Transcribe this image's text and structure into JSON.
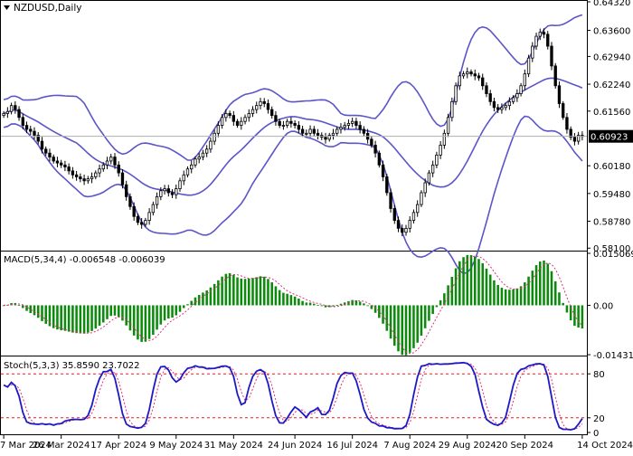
{
  "chart_data": [
    {
      "type": "candlestick",
      "pane": "price",
      "title": "NZDUSD,Daily",
      "ylim": [
        0.5806,
        0.6432
      ],
      "y_ticks": [
        "0.64320",
        "0.63600",
        "0.62940",
        "0.62240",
        "0.61560",
        "0.60180",
        "0.59480",
        "0.58780",
        "0.58100"
      ],
      "current_price": 0.60923,
      "current_price_label": "0.60923",
      "x_labels": [
        "7 Mar 2024",
        "26 Mar 2024",
        "17 Apr 2024",
        "9 May 2024",
        "31 May 2024",
        "24 Jun 2024",
        "16 Jul 2024",
        "7 Aug 2024",
        "29 Aug 2024",
        "20 Sep 2024",
        "14 Oct 2024"
      ],
      "closes": [
        0.615,
        0.6155,
        0.617,
        0.616,
        0.614,
        0.612,
        0.611,
        0.6105,
        0.6095,
        0.608,
        0.606,
        0.605,
        0.604,
        0.603,
        0.6025,
        0.602,
        0.6015,
        0.6005,
        0.5995,
        0.599,
        0.5985,
        0.598,
        0.5985,
        0.599,
        0.6,
        0.601,
        0.602,
        0.603,
        0.604,
        0.602,
        0.6,
        0.597,
        0.594,
        0.5915,
        0.589,
        0.5875,
        0.587,
        0.588,
        0.59,
        0.592,
        0.594,
        0.5955,
        0.596,
        0.595,
        0.5945,
        0.596,
        0.598,
        0.5995,
        0.601,
        0.602,
        0.6035,
        0.604,
        0.605,
        0.606,
        0.608,
        0.61,
        0.612,
        0.614,
        0.615,
        0.6145,
        0.613,
        0.612,
        0.613,
        0.614,
        0.615,
        0.616,
        0.617,
        0.618,
        0.6175,
        0.616,
        0.6145,
        0.613,
        0.612,
        0.612,
        0.613,
        0.6125,
        0.612,
        0.611,
        0.61,
        0.61,
        0.611,
        0.61,
        0.6095,
        0.609,
        0.6085,
        0.6095,
        0.61,
        0.611,
        0.6115,
        0.612,
        0.6125,
        0.613,
        0.612,
        0.611,
        0.61,
        0.6085,
        0.607,
        0.605,
        0.602,
        0.599,
        0.595,
        0.591,
        0.588,
        0.586,
        0.585,
        0.586,
        0.588,
        0.59,
        0.592,
        0.595,
        0.5975,
        0.6,
        0.602,
        0.6045,
        0.607,
        0.61,
        0.614,
        0.618,
        0.622,
        0.6245,
        0.625,
        0.6255,
        0.625,
        0.6245,
        0.624,
        0.622,
        0.62,
        0.618,
        0.6165,
        0.616,
        0.6165,
        0.617,
        0.618,
        0.619,
        0.62,
        0.622,
        0.625,
        0.629,
        0.632,
        0.6345,
        0.6355,
        0.635,
        0.632,
        0.627,
        0.622,
        0.6175,
        0.614,
        0.611,
        0.609,
        0.608,
        0.6095,
        0.6092
      ]
    },
    {
      "type": "bar",
      "pane": "macd",
      "title": "MACD(5,34,4) -0.006548 -0.006039",
      "ylim": [
        -0.01431,
        0.01507
      ],
      "y_ticks": [
        "0.015069",
        "0.00",
        "-0.014318"
      ]
    },
    {
      "type": "line",
      "pane": "stochastic",
      "title": "Stoch(5,3,3) 35.8590 23.7022",
      "ylim": [
        0,
        100
      ],
      "y_ticks": [
        "80",
        "20",
        "0"
      ],
      "levels": [
        80,
        20
      ]
    }
  ],
  "colors": {
    "bullish": "#ffffff",
    "bearish": "#000000",
    "bands": "#5b55c9",
    "macd_hist": "#0b8a0b",
    "macd_signal": "#e0307a",
    "stoch_main": "#1d19c4",
    "stoch_signal": "#e0307a",
    "level_line": "#e02020",
    "grid": "#000000"
  }
}
